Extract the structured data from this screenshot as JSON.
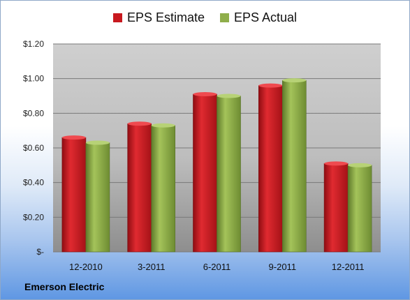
{
  "company": "Emerson Electric",
  "colors": {
    "estimate": "#c8191f",
    "actual": "#8fae4a",
    "plot_bg": "#c9c9c9"
  },
  "chart_data": {
    "type": "bar",
    "categories": [
      "12-2010",
      "3-2011",
      "6-2011",
      "9-2011",
      "12-2011"
    ],
    "series": [
      {
        "name": "EPS Estimate",
        "values": [
          0.66,
          0.74,
          0.91,
          0.96,
          0.51
        ]
      },
      {
        "name": "EPS Actual",
        "values": [
          0.63,
          0.73,
          0.9,
          0.99,
          0.5
        ]
      }
    ],
    "yticks": [
      "$-",
      "$0.20",
      "$0.40",
      "$0.60",
      "$0.80",
      "$1.00",
      "$1.20"
    ],
    "ylim": [
      0,
      1.2
    ],
    "grid": true,
    "legend": "top-center"
  }
}
